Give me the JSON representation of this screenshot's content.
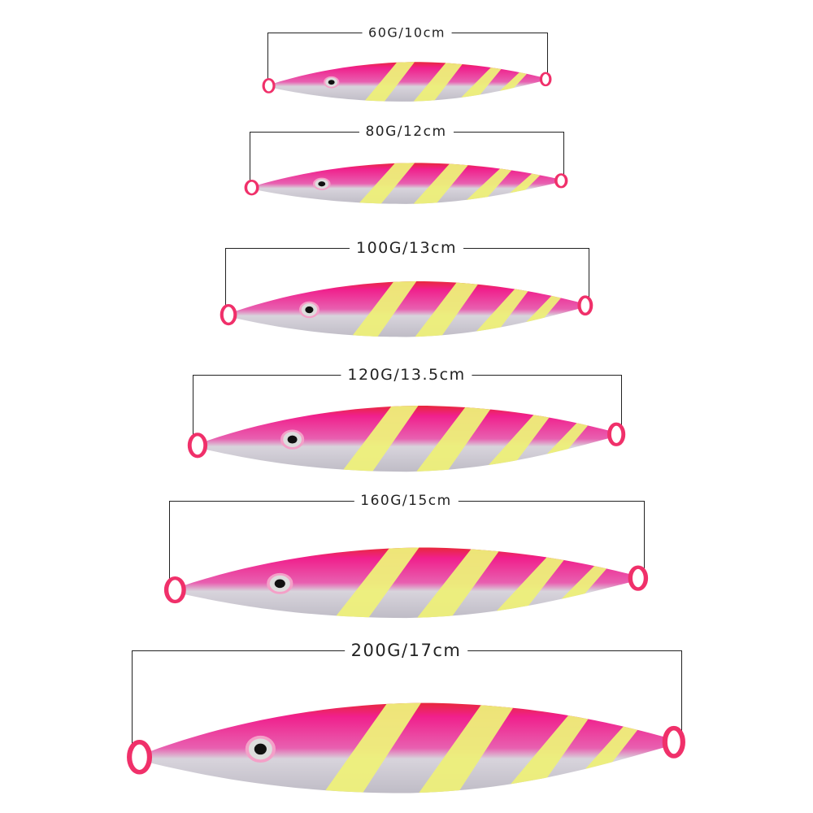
{
  "colors": {
    "body_pink": "#f0208c",
    "body_red_edge": "#e8283c",
    "belly_silver": "#d8d4dc",
    "stripe_yellow": "#eef07a",
    "bracket_line": "#222222"
  },
  "lures": [
    {
      "label": "60G/10cm"
    },
    {
      "label": "80G/12cm"
    },
    {
      "label": "100G/13cm"
    },
    {
      "label": "120G/13.5cm"
    },
    {
      "label": "160G/15cm"
    },
    {
      "label": "200G/17cm"
    }
  ]
}
